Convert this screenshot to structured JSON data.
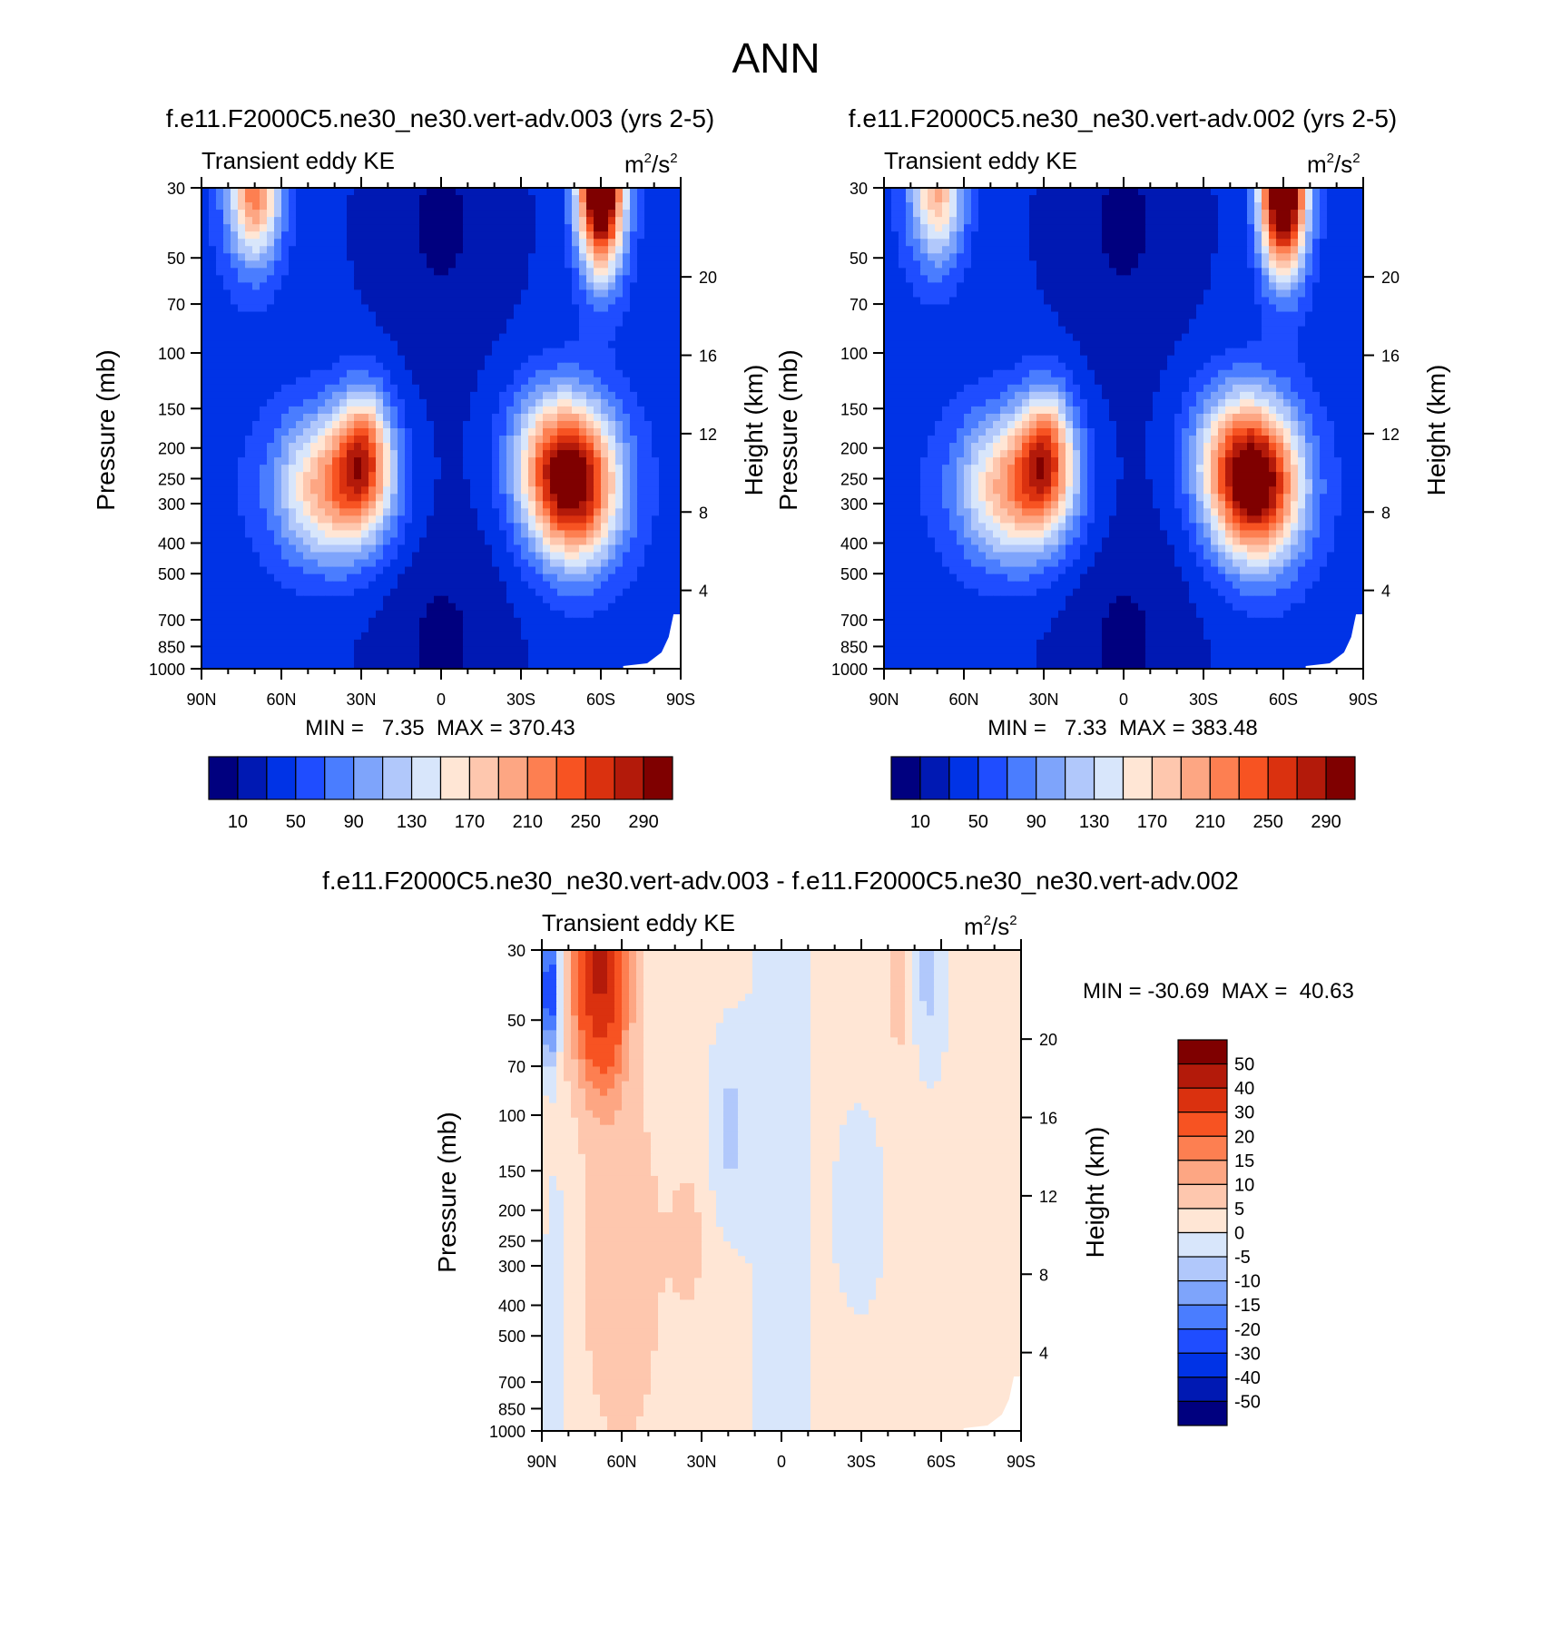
{
  "page_title": "ANN",
  "chart_data": [
    {
      "type": "heatmap",
      "id": "top-left",
      "title": "f.e11.F2000C5.ne30_ne30.vert-adv.003 (yrs 2-5)",
      "subtitle": "Transient eddy KE",
      "units_base": "m",
      "units_mid": "/s",
      "units_exp": "2",
      "ylabel": "Pressure (mb)",
      "ylabel_right": "Height (km)",
      "x_ticks": [
        "90N",
        "60N",
        "30N",
        "0",
        "30S",
        "60S",
        "90S"
      ],
      "y_ticks": [
        "30",
        "50",
        "70",
        "100",
        "150",
        "200",
        "250",
        "300",
        "400",
        "500",
        "700",
        "850",
        "1000"
      ],
      "y_ticks_right": [
        "20",
        "16",
        "12",
        "8",
        "4"
      ],
      "stats": "MIN =   7.35  MAX = 370.43",
      "colorbar_labels": [
        "10",
        "50",
        "90",
        "130",
        "170",
        "210",
        "250",
        "290"
      ],
      "features": [
        {
          "lat": 35,
          "p": 230,
          "value": 330
        },
        {
          "lat": -50,
          "p": 260,
          "value": 370
        },
        {
          "lat": -60,
          "p": 30,
          "value": 340
        },
        {
          "lat": 70,
          "p": 30,
          "value": 190
        }
      ]
    },
    {
      "type": "heatmap",
      "id": "top-right",
      "title": "f.e11.F2000C5.ne30_ne30.vert-adv.002 (yrs 2-5)",
      "subtitle": "Transient eddy KE",
      "units_base": "m",
      "units_mid": "/s",
      "units_exp": "2",
      "ylabel": "Pressure (mb)",
      "ylabel_right": "Height (km)",
      "x_ticks": [
        "90N",
        "60N",
        "30N",
        "0",
        "30S",
        "60S",
        "90S"
      ],
      "y_ticks": [
        "30",
        "50",
        "70",
        "100",
        "150",
        "200",
        "250",
        "300",
        "400",
        "500",
        "700",
        "850",
        "1000"
      ],
      "y_ticks_right": [
        "20",
        "16",
        "12",
        "8",
        "4"
      ],
      "stats": "MIN =   7.33  MAX = 383.48",
      "colorbar_labels": [
        "10",
        "50",
        "90",
        "130",
        "170",
        "210",
        "250",
        "290"
      ],
      "features": [
        {
          "lat": 35,
          "p": 220,
          "value": 330
        },
        {
          "lat": -50,
          "p": 260,
          "value": 383
        },
        {
          "lat": -60,
          "p": 30,
          "value": 350
        },
        {
          "lat": 70,
          "p": 30,
          "value": 165
        }
      ]
    },
    {
      "type": "heatmap",
      "id": "difference",
      "title": "f.e11.F2000C5.ne30_ne30.vert-adv.003 - f.e11.F2000C5.ne30_ne30.vert-adv.002",
      "subtitle": "Transient eddy KE",
      "units_base": "m",
      "units_mid": "/s",
      "units_exp": "2",
      "ylabel": "Pressure (mb)",
      "ylabel_right": "Height (km)",
      "x_ticks": [
        "90N",
        "60N",
        "30N",
        "0",
        "30S",
        "60S",
        "90S"
      ],
      "y_ticks": [
        "30",
        "50",
        "70",
        "100",
        "150",
        "200",
        "250",
        "300",
        "400",
        "500",
        "700",
        "850",
        "1000"
      ],
      "y_ticks_right": [
        "20",
        "16",
        "12",
        "8",
        "4"
      ],
      "stats": "MIN = -30.69  MAX =  40.63",
      "colorbar_labels": [
        "50",
        "40",
        "30",
        "20",
        "15",
        "10",
        "5",
        "0",
        "-5",
        "-10",
        "-15",
        "-20",
        "-30",
        "-40",
        "-50"
      ],
      "features": [
        {
          "lat": 68,
          "p": 45,
          "value": 40
        },
        {
          "lat": 87,
          "p": 40,
          "value": -30
        },
        {
          "lat": -65,
          "p": 35,
          "value": -10
        }
      ]
    }
  ],
  "colors": {
    "kinetic_palette": [
      "#00007f",
      "#0019b3",
      "#0033e6",
      "#1f4dff",
      "#4a7dff",
      "#7ea4fb",
      "#b1c8fb",
      "#d8e6fb",
      "#ffe6d5",
      "#fec7ae",
      "#fda683",
      "#fd7f51",
      "#f75322",
      "#da310f",
      "#b31a0a",
      "#7f0000"
    ],
    "diff_palette": [
      "#7f0000",
      "#b31a0a",
      "#da310f",
      "#f75322",
      "#fd7f51",
      "#fda683",
      "#fec7ae",
      "#ffe6d5",
      "#d8e6fb",
      "#b1c8fb",
      "#7ea4fb",
      "#4a7dff",
      "#1f4dff",
      "#0033e6",
      "#0019b3",
      "#00007f"
    ]
  }
}
